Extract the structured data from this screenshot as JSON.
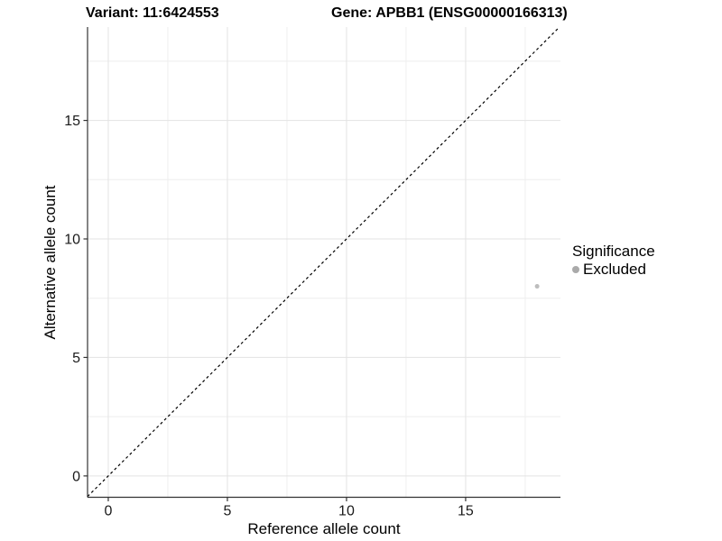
{
  "title_variant": "Variant: 11:6424553",
  "title_gene": "Gene: APBB1 (ENSG00000166313)",
  "legend": {
    "title": "Significance",
    "items": [
      {
        "label": "Excluded",
        "color": "#aaaaaa"
      }
    ]
  },
  "chart_data": {
    "type": "scatter",
    "title": "Variant: 11:6424553 | Gene: APBB1 (ENSG00000166313)",
    "xlabel": "Reference allele count",
    "ylabel": "Alternative allele count",
    "xlim": [
      -0.87,
      18.98
    ],
    "ylim": [
      -0.9,
      18.94
    ],
    "x_major_ticks": [
      0,
      5,
      10,
      15
    ],
    "y_major_ticks": [
      0,
      5,
      10,
      15
    ],
    "x_tick_labels": [
      "0",
      "5",
      "10",
      "15"
    ],
    "y_tick_labels": [
      "0",
      "5",
      "10",
      "15"
    ],
    "x_minor_ticks": [
      2.5,
      7.5,
      12.5,
      17.5
    ],
    "y_minor_ticks": [
      2.5,
      7.5,
      12.5,
      17.5
    ],
    "grid": true,
    "legend_position": "right",
    "series": [
      {
        "name": "Excluded",
        "color": "#bdbdbd",
        "points": [
          {
            "x": 18,
            "y": 8
          }
        ]
      }
    ],
    "identity_line": {
      "slope": 1,
      "intercept": 0,
      "style": "dashed",
      "color": "#000000"
    }
  },
  "colors": {
    "grid_major": "#e3e3e3",
    "grid_minor": "#eeeeee",
    "axis_line": "#333333",
    "tick_text": "#1a1a1a",
    "point": "#bdbdbd"
  }
}
